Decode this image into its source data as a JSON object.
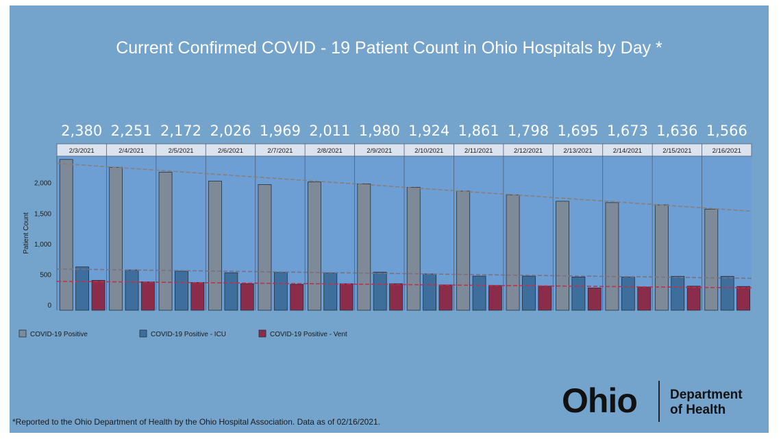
{
  "colors": {
    "background": "#74a4cc",
    "plot_area": "#6d9fd4",
    "positive_bar": "#7e8a98",
    "icu_bar": "#3e6f9c",
    "vent_bar": "#8b2c4a",
    "trend_positive": "#8a7d76",
    "trend_icu": "#7a7080",
    "trend_vent": "#c0304a"
  },
  "chart_data": {
    "type": "bar",
    "title": "Current Confirmed COVID - 19 Patient Count in Ohio Hospitals by Day *",
    "xlabel": "",
    "ylabel": "Patient Count",
    "ylim": [
      0,
      2400
    ],
    "yticks": [
      {
        "value": 0,
        "label": "0"
      },
      {
        "value": 500,
        "label": "500"
      },
      {
        "value": 1000,
        "label": "1,000"
      },
      {
        "value": 1500,
        "label": "1,500"
      },
      {
        "value": 2000,
        "label": "2,000"
      }
    ],
    "categories": [
      "2/3/2021",
      "2/4/2021",
      "2/5/2021",
      "2/6/2021",
      "2/7/2021",
      "2/8/2021",
      "2/9/2021",
      "2/10/2021",
      "2/11/2021",
      "2/12/2021",
      "2/13/2021",
      "2/14/2021",
      "2/15/2021",
      "2/16/2021"
    ],
    "top_labels": [
      "2,380",
      "2,251",
      "2,172",
      "2,026",
      "1,969",
      "2,011",
      "1,980",
      "1,924",
      "1,861",
      "1,798",
      "1,695",
      "1,673",
      "1,636",
      "1,566"
    ],
    "series": [
      {
        "name": "COVID-19 Positive",
        "values": [
          2380,
          2251,
          2172,
          2026,
          1969,
          2011,
          1980,
          1924,
          1861,
          1798,
          1695,
          1673,
          1636,
          1566
        ]
      },
      {
        "name": "COVID-19 Positive - ICU",
        "values": [
          620,
          570,
          550,
          525,
          530,
          520,
          535,
          505,
          470,
          470,
          455,
          455,
          465,
          465
        ]
      },
      {
        "name": "COVID-19 Positive - Vent",
        "values": [
          400,
          375,
          365,
          345,
          335,
          345,
          345,
          325,
          315,
          305,
          275,
          290,
          305,
          300
        ]
      }
    ],
    "trendlines": true,
    "grid": false,
    "legend": "bottom"
  },
  "footnote": "*Reported to the Ohio Department of Health by the Ohio Hospital Association. Data as of 02/16/2021.",
  "logo": {
    "name": "Ohio",
    "dept_line1": "Department",
    "dept_line2": "of Health"
  }
}
